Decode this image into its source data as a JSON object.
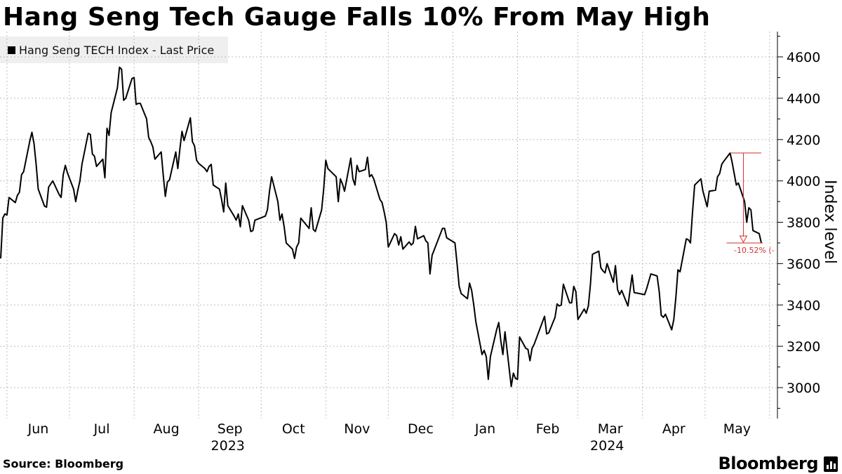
{
  "title": "Hang Seng Tech Gauge Falls 10% From May High",
  "legend": {
    "label": "Hang Seng TECH Index - Last Price"
  },
  "source": "Source: Bloomberg",
  "brand": "Bloomberg",
  "annotation": {
    "label": "-10.52% (-",
    "color": "#d32f2f"
  },
  "chart_data": {
    "type": "line",
    "ylabel": "Index level",
    "ylim": [
      2870,
      4700
    ],
    "y_ticks": [
      3000,
      3200,
      3400,
      3600,
      3800,
      4000,
      4200,
      4400,
      4600
    ],
    "y_tick_labels": [
      "3000",
      "3200",
      "3400",
      "3600",
      "3800",
      "4000",
      "4200",
      "4400",
      "4600"
    ],
    "x_month_labels": [
      "Jun",
      "Jul",
      "Aug",
      "Sep",
      "Oct",
      "Nov",
      "Dec",
      "Jan",
      "Feb",
      "Mar",
      "Apr",
      "May"
    ],
    "x_year_labels": [
      "2023",
      "2024"
    ],
    "grid": true,
    "legend_position": "top-left",
    "series": [
      {
        "name": "Hang Seng TECH Index - Last Price",
        "color": "#000000",
        "x": [
          "2023-05-29",
          "2023-05-30",
          "2023-05-31",
          "2023-06-01",
          "2023-06-02",
          "2023-06-05",
          "2023-06-06",
          "2023-06-07",
          "2023-06-08",
          "2023-06-09",
          "2023-06-12",
          "2023-06-13",
          "2023-06-14",
          "2023-06-15",
          "2023-06-16",
          "2023-06-19",
          "2023-06-20",
          "2023-06-21",
          "2023-06-23",
          "2023-06-26",
          "2023-06-27",
          "2023-06-28",
          "2023-06-29",
          "2023-06-30",
          "2023-07-03",
          "2023-07-04",
          "2023-07-05",
          "2023-07-06",
          "2023-07-07",
          "2023-07-10",
          "2023-07-11",
          "2023-07-12",
          "2023-07-13",
          "2023-07-14",
          "2023-07-17",
          "2023-07-18",
          "2023-07-19",
          "2023-07-20",
          "2023-07-21",
          "2023-07-24",
          "2023-07-25",
          "2023-07-26",
          "2023-07-27",
          "2023-07-28",
          "2023-07-31",
          "2023-08-01",
          "2023-08-02",
          "2023-08-03",
          "2023-08-04",
          "2023-08-07",
          "2023-08-08",
          "2023-08-09",
          "2023-08-10",
          "2023-08-11",
          "2023-08-14",
          "2023-08-15",
          "2023-08-16",
          "2023-08-17",
          "2023-08-18",
          "2023-08-21",
          "2023-08-22",
          "2023-08-23",
          "2023-08-24",
          "2023-08-25",
          "2023-08-28",
          "2023-08-29",
          "2023-08-30",
          "2023-08-31",
          "2023-09-01",
          "2023-09-04",
          "2023-09-05",
          "2023-09-06",
          "2023-09-07",
          "2023-09-08",
          "2023-09-11",
          "2023-09-12",
          "2023-09-13",
          "2023-09-14",
          "2023-09-15",
          "2023-09-18",
          "2023-09-19",
          "2023-09-20",
          "2023-09-21",
          "2023-09-22",
          "2023-09-25",
          "2023-09-26",
          "2023-09-27",
          "2023-09-28",
          "2023-10-03",
          "2023-10-04",
          "2023-10-05",
          "2023-10-06",
          "2023-10-09",
          "2023-10-10",
          "2023-10-11",
          "2023-10-12",
          "2023-10-13",
          "2023-10-16",
          "2023-10-17",
          "2023-10-18",
          "2023-10-19",
          "2023-10-20",
          "2023-10-24",
          "2023-10-25",
          "2023-10-26",
          "2023-10-27",
          "2023-10-30",
          "2023-10-31",
          "2023-11-01",
          "2023-11-02",
          "2023-11-03",
          "2023-11-06",
          "2023-11-07",
          "2023-11-08",
          "2023-11-09",
          "2023-11-10",
          "2023-11-13",
          "2023-11-14",
          "2023-11-15",
          "2023-11-16",
          "2023-11-17",
          "2023-11-20",
          "2023-11-21",
          "2023-11-22",
          "2023-11-23",
          "2023-11-24",
          "2023-11-27",
          "2023-11-28",
          "2023-11-29",
          "2023-11-30",
          "2023-12-01",
          "2023-12-04",
          "2023-12-05",
          "2023-12-06",
          "2023-12-07",
          "2023-12-08",
          "2023-12-11",
          "2023-12-12",
          "2023-12-13",
          "2023-12-14",
          "2023-12-15",
          "2023-12-18",
          "2023-12-19",
          "2023-12-20",
          "2023-12-21",
          "2023-12-22",
          "2023-12-27",
          "2023-12-28",
          "2023-12-29",
          "2024-01-02",
          "2024-01-03",
          "2024-01-04",
          "2024-01-05",
          "2024-01-08",
          "2024-01-09",
          "2024-01-10",
          "2024-01-11",
          "2024-01-12",
          "2024-01-15",
          "2024-01-16",
          "2024-01-17",
          "2024-01-18",
          "2024-01-19",
          "2024-01-22",
          "2024-01-23",
          "2024-01-24",
          "2024-01-25",
          "2024-01-26",
          "2024-01-29",
          "2024-01-30",
          "2024-01-31",
          "2024-02-01",
          "2024-02-02",
          "2024-02-05",
          "2024-02-06",
          "2024-02-07",
          "2024-02-08",
          "2024-02-09",
          "2024-02-14",
          "2024-02-15",
          "2024-02-16",
          "2024-02-19",
          "2024-02-20",
          "2024-02-21",
          "2024-02-22",
          "2024-02-23",
          "2024-02-26",
          "2024-02-27",
          "2024-02-28",
          "2024-02-29",
          "2024-03-01",
          "2024-03-04",
          "2024-03-05",
          "2024-03-06",
          "2024-03-07",
          "2024-03-08",
          "2024-03-11",
          "2024-03-12",
          "2024-03-13",
          "2024-03-14",
          "2024-03-15",
          "2024-03-18",
          "2024-03-19",
          "2024-03-20",
          "2024-03-21",
          "2024-03-22",
          "2024-03-25",
          "2024-03-26",
          "2024-03-27",
          "2024-03-28",
          "2024-04-02",
          "2024-04-03",
          "2024-04-05",
          "2024-04-08",
          "2024-04-09",
          "2024-04-10",
          "2024-04-11",
          "2024-04-12",
          "2024-04-15",
          "2024-04-16",
          "2024-04-17",
          "2024-04-18",
          "2024-04-19",
          "2024-04-22",
          "2024-04-23",
          "2024-04-24",
          "2024-04-25",
          "2024-04-26",
          "2024-04-29",
          "2024-04-30",
          "2024-05-02",
          "2024-05-03",
          "2024-05-06",
          "2024-05-07",
          "2024-05-08",
          "2024-05-09",
          "2024-05-10",
          "2024-05-13",
          "2024-05-14",
          "2024-05-16",
          "2024-05-17",
          "2024-05-20",
          "2024-05-21",
          "2024-05-22",
          "2024-05-23",
          "2024-05-24",
          "2024-05-27",
          "2024-05-28"
        ],
        "values": [
          3625,
          3820,
          3840,
          3835,
          3920,
          3895,
          3930,
          3945,
          4030,
          4045,
          4195,
          4235,
          4180,
          4080,
          3960,
          3878,
          3873,
          3970,
          4000,
          3935,
          3920,
          4030,
          4075,
          4040,
          3960,
          3900,
          3955,
          4000,
          4080,
          4230,
          4225,
          4130,
          4120,
          4070,
          4105,
          4015,
          4255,
          4220,
          4330,
          4450,
          4550,
          4540,
          4390,
          4400,
          4495,
          4500,
          4370,
          4375,
          4375,
          4300,
          4210,
          4190,
          4165,
          4105,
          4140,
          4030,
          3925,
          3995,
          4005,
          4140,
          4060,
          4155,
          4240,
          4195,
          4305,
          4190,
          4170,
          4100,
          4085,
          4060,
          4045,
          4070,
          4080,
          3980,
          3960,
          3910,
          3850,
          3990,
          3880,
          3830,
          3810,
          3840,
          3778,
          3880,
          3810,
          3755,
          3760,
          3810,
          3830,
          3860,
          3950,
          4020,
          3900,
          3810,
          3840,
          3780,
          3700,
          3670,
          3625,
          3680,
          3700,
          3820,
          3770,
          3870,
          3765,
          3755,
          3860,
          3960,
          4100,
          4060,
          4050,
          4020,
          3900,
          4010,
          3985,
          3950,
          4110,
          4010,
          3980,
          4075,
          4045,
          4055,
          4115,
          4020,
          4030,
          4010,
          3910,
          3895,
          3850,
          3800,
          3680,
          3745,
          3735,
          3690,
          3730,
          3670,
          3705,
          3690,
          3700,
          3780,
          3720,
          3735,
          3710,
          3700,
          3550,
          3640,
          3770,
          3770,
          3725,
          3700,
          3600,
          3490,
          3455,
          3430,
          3505,
          3470,
          3400,
          3320,
          3160,
          3180,
          3150,
          3040,
          3150,
          3280,
          3315,
          3225,
          3160,
          3270,
          3005,
          3070,
          3045,
          3040,
          3245,
          3190,
          3185,
          3130,
          3190,
          3210,
          3345,
          3260,
          3265,
          3340,
          3405,
          3395,
          3400,
          3500,
          3410,
          3410,
          3490,
          3465,
          3330,
          3380,
          3360,
          3395,
          3500,
          3645,
          3660,
          3580,
          3565,
          3555,
          3600,
          3510,
          3590,
          3475,
          3450,
          3470,
          3395,
          3470,
          3545,
          3460,
          3450,
          3480,
          3550,
          3540,
          3465,
          3350,
          3340,
          3355,
          3280,
          3330,
          3435,
          3570,
          3560,
          3720,
          3715,
          3700,
          3850,
          3980,
          4010,
          3950,
          3875,
          3950,
          3955,
          4020,
          4035,
          4080,
          4095,
          4135,
          4090,
          3980,
          3990,
          3900,
          3800,
          3870,
          3860,
          3760,
          3745,
          3700
        ]
      }
    ]
  }
}
